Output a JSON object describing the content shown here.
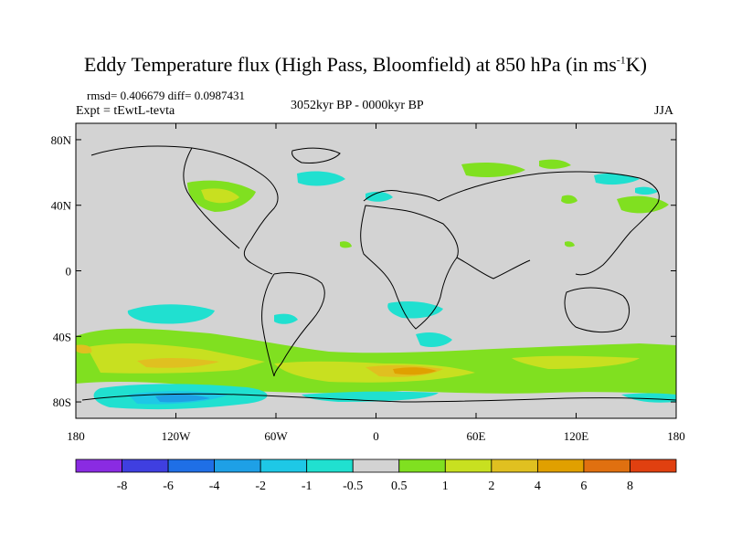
{
  "title": {
    "main": "Eddy Temperature flux (High Pass, Bloomfield) at 850 hPa (in ms",
    "sup": "-1",
    "end": "K)"
  },
  "stats": "rmsd= 0.406679 diff= 0.0987431",
  "expt": "Expt = tEwtL-tevta",
  "period": "3052kyr BP - 0000kyr BP",
  "season": "JJA",
  "lat_labels": [
    {
      "text": "80N",
      "lat": 80
    },
    {
      "text": "40N",
      "lat": 40
    },
    {
      "text": "0",
      "lat": 0
    },
    {
      "text": "40S",
      "lat": -40
    },
    {
      "text": "80S",
      "lat": -80
    }
  ],
  "lon_labels": [
    {
      "text": "180",
      "lon": -180
    },
    {
      "text": "120W",
      "lon": -120
    },
    {
      "text": "60W",
      "lon": -60
    },
    {
      "text": "0",
      "lon": 0
    },
    {
      "text": "60E",
      "lon": 60
    },
    {
      "text": "120E",
      "lon": 120
    },
    {
      "text": "180",
      "lon": 180
    }
  ],
  "colorbar": {
    "colors": [
      "#8a2be2",
      "#3f3fe0",
      "#1f6fe6",
      "#1ea0e6",
      "#1ec8e6",
      "#20e0d0",
      "#d3d3d3",
      "#80e020",
      "#c8e020",
      "#e0c020",
      "#e0a000",
      "#e07010",
      "#e04010"
    ],
    "labels": [
      "-8",
      "-6",
      "-4",
      "-2",
      "-1",
      "-0.5",
      "0.5",
      "1",
      "2",
      "4",
      "6",
      "8"
    ]
  },
  "colors": {
    "background_field": "#d3d3d3",
    "coast": "#000000"
  }
}
